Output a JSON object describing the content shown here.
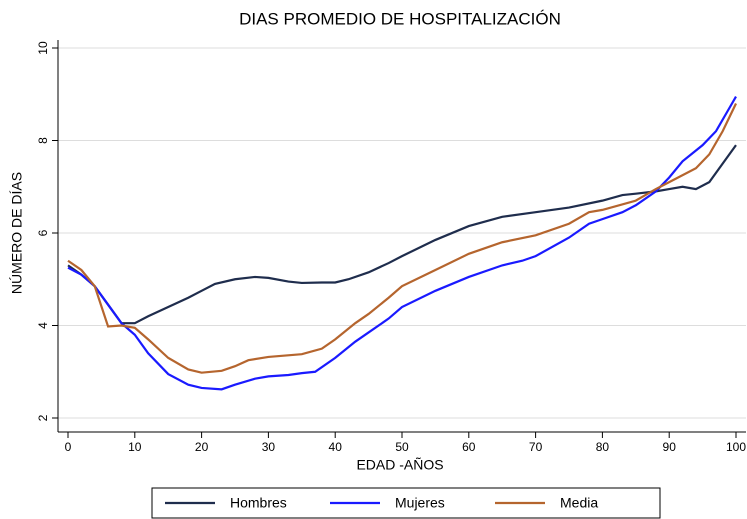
{
  "chart_data": {
    "type": "line",
    "title": "DIAS PROMEDIO DE HOSPITALIZACIÓN",
    "x_label": "EDAD -AÑOS",
    "y_label": "NÚMERO DE DÍAS",
    "xlim": [
      0,
      100
    ],
    "xticks": [
      0,
      10,
      20,
      30,
      40,
      50,
      60,
      70,
      80,
      90,
      100
    ],
    "ylim": [
      2,
      10
    ],
    "yticks": [
      2,
      4,
      6,
      8,
      10
    ],
    "grid": true,
    "legend": "bottom",
    "series": [
      {
        "name": "Hombres",
        "color": "#1f2d4d",
        "x": [
          0,
          2,
          4,
          6,
          8,
          10,
          12,
          15,
          18,
          20,
          22,
          25,
          28,
          30,
          33,
          35,
          38,
          40,
          42,
          45,
          48,
          50,
          55,
          60,
          65,
          70,
          75,
          80,
          83,
          85,
          88,
          90,
          92,
          94,
          96,
          98,
          100
        ],
        "values": [
          5.3,
          5.1,
          4.85,
          4.45,
          4.05,
          4.05,
          4.2,
          4.4,
          4.6,
          4.75,
          4.9,
          5.0,
          5.05,
          5.03,
          4.95,
          4.92,
          4.93,
          4.93,
          5.0,
          5.15,
          5.35,
          5.5,
          5.85,
          6.15,
          6.35,
          6.45,
          6.55,
          6.7,
          6.82,
          6.85,
          6.9,
          6.95,
          7.0,
          6.95,
          7.1,
          7.5,
          7.9
        ]
      },
      {
        "name": "Mujeres",
        "color": "#1a1aff",
        "x": [
          0,
          2,
          4,
          6,
          8,
          10,
          12,
          15,
          18,
          20,
          23,
          25,
          28,
          30,
          33,
          35,
          37,
          40,
          43,
          45,
          48,
          50,
          55,
          60,
          65,
          68,
          70,
          75,
          78,
          80,
          83,
          85,
          88,
          90,
          92,
          95,
          97,
          99,
          100
        ],
        "values": [
          5.25,
          5.1,
          4.85,
          4.45,
          4.05,
          3.8,
          3.4,
          2.95,
          2.72,
          2.65,
          2.62,
          2.72,
          2.85,
          2.9,
          2.93,
          2.97,
          3.0,
          3.3,
          3.65,
          3.85,
          4.15,
          4.4,
          4.75,
          5.05,
          5.3,
          5.4,
          5.5,
          5.9,
          6.2,
          6.3,
          6.45,
          6.6,
          6.9,
          7.2,
          7.55,
          7.9,
          8.2,
          8.7,
          8.95
        ]
      },
      {
        "name": "Media",
        "color": "#b5652e",
        "x": [
          0,
          2,
          4,
          6,
          8,
          10,
          12,
          15,
          18,
          20,
          23,
          25,
          27,
          30,
          35,
          38,
          40,
          43,
          45,
          48,
          50,
          55,
          60,
          65,
          70,
          75,
          78,
          80,
          85,
          88,
          90,
          94,
          96,
          98,
          100
        ],
        "values": [
          5.4,
          5.2,
          4.85,
          3.98,
          4.0,
          3.95,
          3.7,
          3.3,
          3.05,
          2.98,
          3.02,
          3.12,
          3.25,
          3.32,
          3.38,
          3.5,
          3.7,
          4.05,
          4.25,
          4.6,
          4.85,
          5.2,
          5.55,
          5.8,
          5.95,
          6.2,
          6.45,
          6.5,
          6.7,
          6.95,
          7.1,
          7.4,
          7.7,
          8.2,
          8.8
        ]
      }
    ]
  }
}
